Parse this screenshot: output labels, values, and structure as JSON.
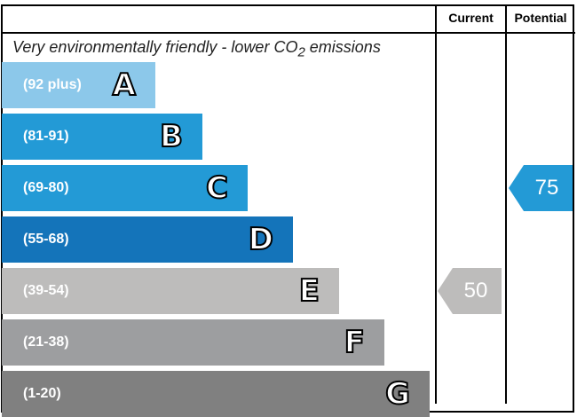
{
  "chart_data": {
    "type": "bar",
    "header": {
      "current": "Current",
      "potential": "Potential"
    },
    "top_text": "Very environmentally friendly - lower CO",
    "top_text_sub": "2",
    "top_text_end": " emissions",
    "bands": [
      {
        "letter": "A",
        "range": "(92 plus)",
        "color": "#8cc8ea"
      },
      {
        "letter": "B",
        "range": "(81-91)",
        "color": "#239ad6"
      },
      {
        "letter": "C",
        "range": "(69-80)",
        "color": "#239ad6"
      },
      {
        "letter": "D",
        "range": "(55-68)",
        "color": "#1474ba"
      },
      {
        "letter": "E",
        "range": "(39-54)",
        "color": "#bdbcbb"
      },
      {
        "letter": "F",
        "range": "(21-38)",
        "color": "#9d9ea0"
      },
      {
        "letter": "G",
        "range": "(1-20)",
        "color": "#808080"
      }
    ],
    "current": {
      "value": "50",
      "band": "E",
      "color": "#bdbcbb"
    },
    "potential": {
      "value": "75",
      "band": "C",
      "color": "#239ad6"
    }
  }
}
